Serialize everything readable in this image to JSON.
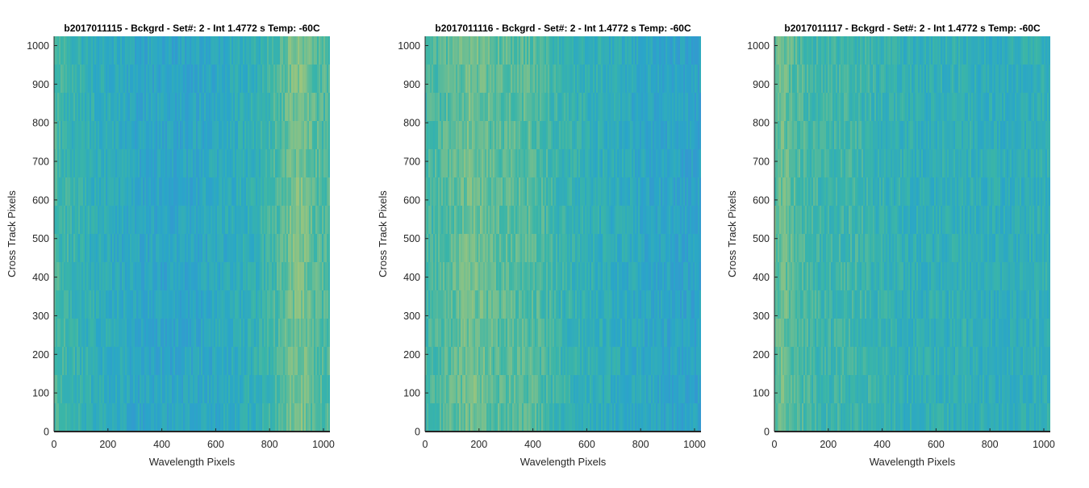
{
  "colors": {
    "background": "#ffffff",
    "axis": "#262626",
    "colormap": [
      "#3b8fd6",
      "#2aa6c8",
      "#3ab5a8",
      "#7cc08c",
      "#b8c96f"
    ]
  },
  "chart_data": [
    {
      "type": "heatmap",
      "title": "b2017011115 - Bckgrd - Set#: 2 - Int 1.4772 s Temp: -60C",
      "xlabel": "Wavelength Pixels",
      "ylabel": "Cross Track Pixels",
      "xlim": [
        0,
        1024
      ],
      "ylim": [
        0,
        1024
      ],
      "xticks": [
        0,
        200,
        400,
        600,
        800,
        1000
      ],
      "yticks": [
        0,
        100,
        200,
        300,
        400,
        500,
        600,
        700,
        800,
        900,
        1000
      ],
      "colormap": "parula",
      "column_profile": {
        "x": [
          0,
          60,
          150,
          300,
          450,
          600,
          750,
          830,
          880,
          920,
          970,
          1024
        ],
        "intensity": [
          0.55,
          0.45,
          0.38,
          0.28,
          0.25,
          0.3,
          0.4,
          0.55,
          0.72,
          0.75,
          0.6,
          0.55
        ]
      }
    },
    {
      "type": "heatmap",
      "title": "b2017011116 - Bckgrd - Set#: 2 - Int 1.4772 s Temp: -60C",
      "xlabel": "Wavelength Pixels",
      "ylabel": "Cross Track Pixels",
      "xlim": [
        0,
        1024
      ],
      "ylim": [
        0,
        1024
      ],
      "xticks": [
        0,
        200,
        400,
        600,
        800,
        1000
      ],
      "yticks": [
        0,
        100,
        200,
        300,
        400,
        500,
        600,
        700,
        800,
        900,
        1000
      ],
      "colormap": "parula",
      "column_profile": {
        "x": [
          0,
          80,
          180,
          260,
          400,
          500,
          650,
          800,
          900,
          1024
        ],
        "intensity": [
          0.5,
          0.6,
          0.72,
          0.62,
          0.6,
          0.45,
          0.38,
          0.3,
          0.25,
          0.22
        ]
      }
    },
    {
      "type": "heatmap",
      "title": "b2017011117 - Bckgrd - Set#: 2 - Int 1.4772 s Temp: -60C",
      "xlabel": "Wavelength Pixels",
      "ylabel": "Cross Track Pixels",
      "xlim": [
        0,
        1024
      ],
      "ylim": [
        0,
        1024
      ],
      "xticks": [
        0,
        200,
        400,
        600,
        800,
        1000
      ],
      "yticks": [
        0,
        100,
        200,
        300,
        400,
        500,
        600,
        700,
        800,
        900,
        1000
      ],
      "colormap": "parula",
      "column_profile": {
        "x": [
          0,
          30,
          80,
          180,
          300,
          400,
          550,
          700,
          850,
          1024
        ],
        "intensity": [
          0.62,
          0.7,
          0.58,
          0.48,
          0.5,
          0.42,
          0.38,
          0.4,
          0.36,
          0.4
        ]
      }
    }
  ]
}
